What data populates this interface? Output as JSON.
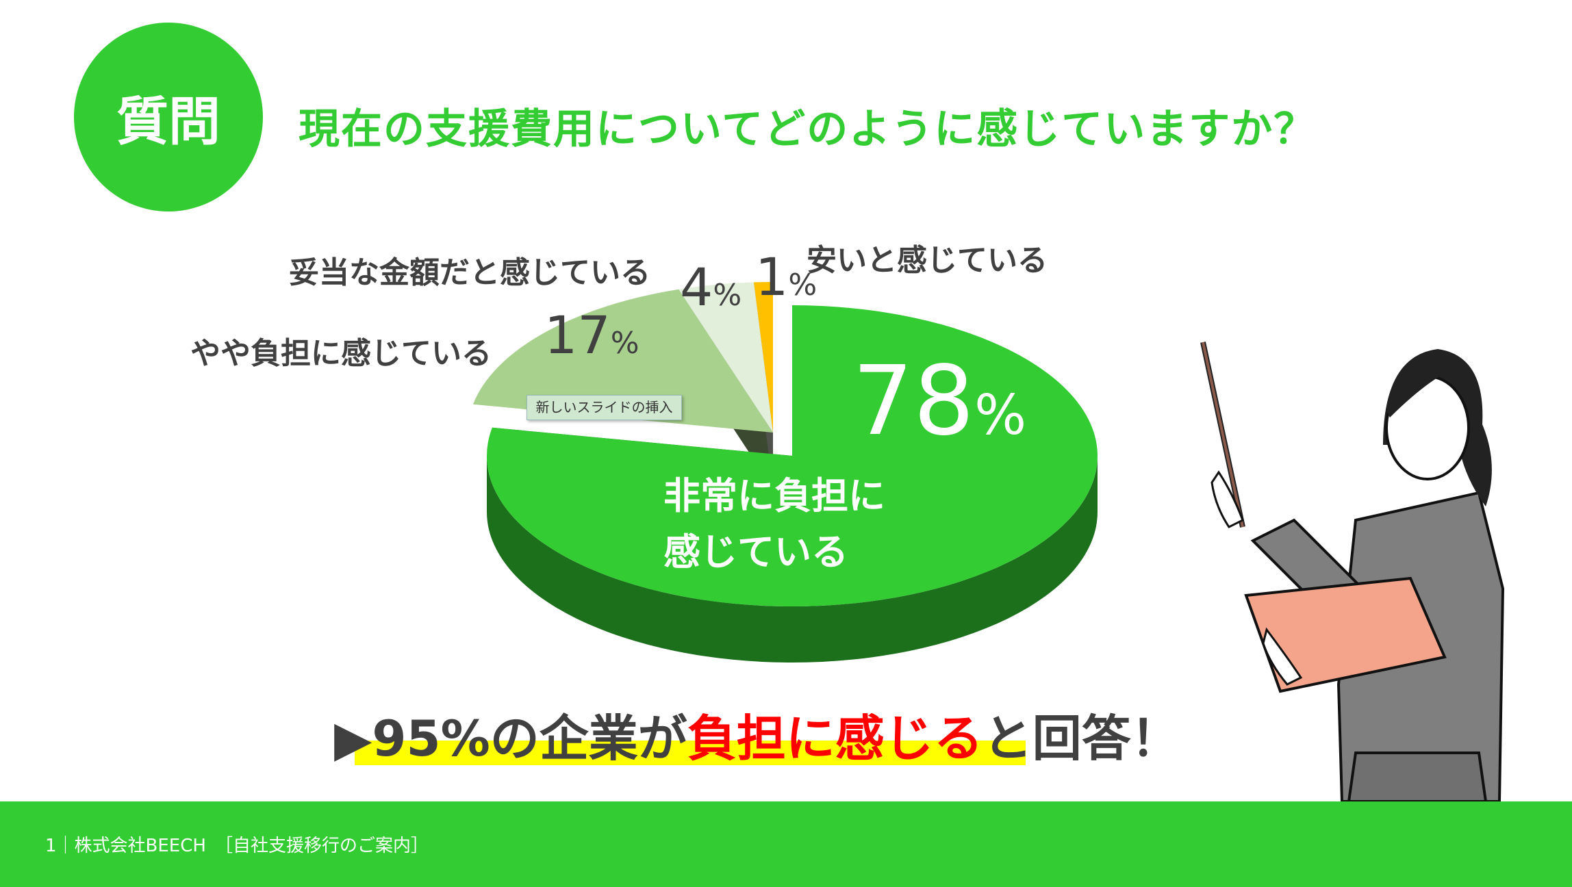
{
  "question_badge": "質問",
  "title": "現在の支援費用についてどのように感じていますか？",
  "chart_data": {
    "type": "pie",
    "style": "3d-exploded",
    "slices": [
      {
        "label": "非常に負担に感じている",
        "label_line1": "非常に負担に",
        "label_line2": "感じている",
        "value": 78,
        "color": "#33cc33"
      },
      {
        "label": "やや負担に感じている",
        "value": 17,
        "color": "#a9d18e"
      },
      {
        "label": "妥当な金額だと感じている",
        "value": 4,
        "color": "#e2efda"
      },
      {
        "label": "安いと感じている",
        "value": 1,
        "color": "#ffc000"
      }
    ],
    "unit": "%"
  },
  "tooltip": "新しいスライドの挿入",
  "conclusion": {
    "prefix": "▶95%の企業が",
    "highlight": "負担に感じる",
    "suffix": "と回答！",
    "highlight_color": "#ff0000"
  },
  "footer": "1｜株式会社BEECH　［自社支援移行のご案内］",
  "colors": {
    "accent": "#33cc33",
    "text": "#404040",
    "marker": "#ffff00"
  }
}
